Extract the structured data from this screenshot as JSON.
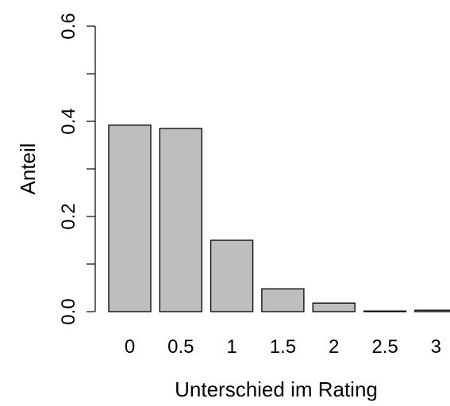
{
  "chart_data": {
    "type": "bar",
    "categories": [
      "0",
      "0.5",
      "1",
      "1.5",
      "2",
      "2.5",
      "3"
    ],
    "values": [
      0.392,
      0.385,
      0.15,
      0.048,
      0.018,
      0.001,
      0.003
    ],
    "xlabel": "Unterschied im Rating",
    "ylabel": "Anteil",
    "ylim": [
      0,
      0.6
    ],
    "yticks": [
      "0.0",
      "0.2",
      "0.4",
      "0.6"
    ],
    "grid": false,
    "colors": {
      "bar_fill": "#bebebe",
      "bar_stroke": "#000000",
      "axis": "#000000"
    }
  }
}
